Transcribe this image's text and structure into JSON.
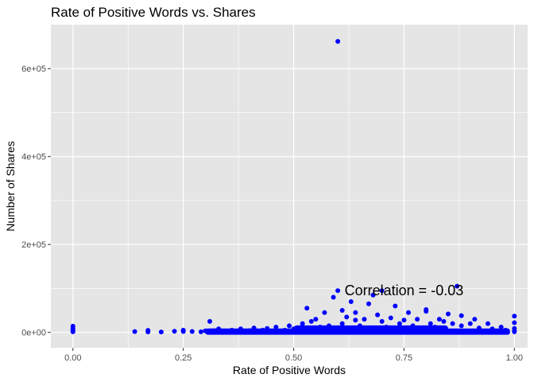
{
  "chart_data": {
    "type": "scatter",
    "title": "Rate of Positive Words vs. Shares",
    "xlabel": "Rate of Positive Words",
    "ylabel": "Number of Shares",
    "xlim": [
      -0.05,
      1.03
    ],
    "ylim": [
      -35000,
      700000
    ],
    "x_ticks": [
      0,
      0.25,
      0.5,
      0.75,
      1
    ],
    "x_tick_labels": [
      "0.00",
      "0.25",
      "0.50",
      "0.75",
      "1.00"
    ],
    "y_ticks": [
      0,
      200000,
      400000,
      600000
    ],
    "y_tick_labels": [
      "0e+00",
      "2e+05",
      "4e+05",
      "6e+05"
    ],
    "grid": true,
    "annotation": {
      "text": "Correlation = -0.03",
      "x": 0.75,
      "y": 95000
    },
    "point_color": "#0000ff",
    "panel_background": "#e5e5e5",
    "gridline_color": "#ffffff",
    "series": [
      {
        "x": [
          0,
          0,
          0,
          0,
          0,
          0.14,
          0.17,
          0.17,
          0.2,
          0.23,
          0.25,
          0.25,
          0.27,
          0.29,
          0.3,
          0.31,
          0.31,
          0.32,
          0.33,
          0.34,
          0.36,
          0.37,
          0.38,
          0.4,
          0.41,
          0.43,
          0.44,
          0.45,
          0.46,
          0.48,
          0.49,
          0.5,
          0.52,
          0.53,
          0.53,
          0.54,
          0.55,
          0.56,
          0.57,
          0.58,
          0.59,
          0.6,
          0.6,
          0.61,
          0.61,
          0.62,
          0.62,
          0.63,
          0.64,
          0.64,
          0.65,
          0.66,
          0.67,
          0.67,
          0.68,
          0.69,
          0.7,
          0.7,
          0.71,
          0.72,
          0.73,
          0.74,
          0.75,
          0.76,
          0.77,
          0.78,
          0.79,
          0.8,
          0.8,
          0.81,
          0.82,
          0.83,
          0.84,
          0.85,
          0.86,
          0.87,
          0.88,
          0.88,
          0.9,
          0.91,
          0.92,
          0.94,
          0.95,
          0.97,
          0.98,
          1,
          1,
          1,
          1,
          1
        ],
        "y": [
          1500,
          5000,
          9000,
          14000,
          3000,
          1800,
          1200,
          4500,
          900,
          2500,
          2200,
          5000,
          2000,
          1500,
          3500,
          1200,
          25000,
          4000,
          8000,
          3000,
          5000,
          2500,
          8000,
          4000,
          10000,
          5000,
          9000,
          3000,
          12000,
          5000,
          15000,
          8000,
          20000,
          3000,
          55000,
          25000,
          30000,
          12000,
          45000,
          15000,
          80000,
          662000,
          95000,
          20000,
          50000,
          35000,
          8000,
          70000,
          28000,
          45000,
          15000,
          30000,
          65000,
          10000,
          85000,
          40000,
          25000,
          95000,
          12000,
          33000,
          60000,
          20000,
          28000,
          45000,
          15000,
          30000,
          10000,
          48000,
          52000,
          20000,
          12000,
          30000,
          25000,
          42000,
          20000,
          105000,
          15000,
          38000,
          20000,
          30000,
          10000,
          20000,
          8000,
          12000,
          5000,
          1500,
          9000,
          22000,
          37000,
          4000
        ]
      }
    ]
  }
}
